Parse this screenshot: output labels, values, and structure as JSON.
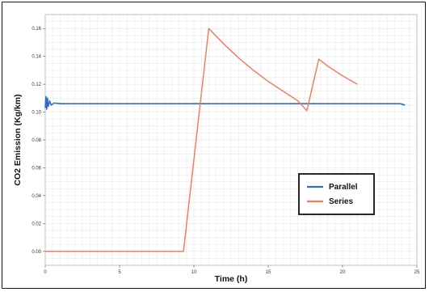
{
  "chart_data": {
    "type": "line",
    "title": "",
    "xlabel": "Time (h)",
    "ylabel": "CO2 Emission (Kg/km)",
    "xlim": [
      0,
      25
    ],
    "ylim": [
      -0.01,
      0.17
    ],
    "x_ticks": [
      0,
      5,
      10,
      15,
      20,
      25
    ],
    "x_tick_labels": [
      "0",
      "5",
      "10",
      "15",
      "20",
      "25"
    ],
    "y_ticks": [
      0.0,
      0.02,
      0.04,
      0.06,
      0.08,
      0.1,
      0.12,
      0.14,
      0.16
    ],
    "y_tick_labels": [
      "0.00",
      "0.02",
      "0.04",
      "0.06",
      "0.08",
      "0.10",
      "0.12",
      "0.14",
      "0.16"
    ],
    "grid": true,
    "legend_position": "lower-right",
    "series": [
      {
        "name": "Parallel",
        "color": "#2e6fc0",
        "x": [
          0,
          0.05,
          0.1,
          0.15,
          0.2,
          0.3,
          0.4,
          0.6,
          1.0,
          5,
          10,
          15,
          20,
          23.9,
          24.2
        ],
        "y": [
          0.103,
          0.111,
          0.102,
          0.11,
          0.104,
          0.108,
          0.105,
          0.1065,
          0.106,
          0.106,
          0.106,
          0.106,
          0.106,
          0.106,
          0.105
        ]
      },
      {
        "name": "Series",
        "color": "#f07f62",
        "x": [
          0,
          9.3,
          11.0,
          12.0,
          13.0,
          14.0,
          15.0,
          16.0,
          17.0,
          17.6,
          18.4,
          19.0,
          20.0,
          21.0
        ],
        "y": [
          0.0,
          0.0,
          0.16,
          0.149,
          0.139,
          0.13,
          0.122,
          0.115,
          0.108,
          0.101,
          0.138,
          0.133,
          0.126,
          0.12
        ]
      }
    ]
  }
}
